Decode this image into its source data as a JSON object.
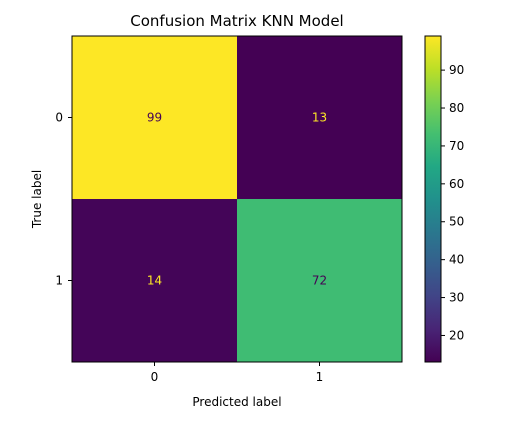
{
  "chart_data": {
    "type": "heatmap",
    "title": "Confusion Matrix KNN Model",
    "xlabel": "Predicted label",
    "ylabel": "True label",
    "x_categories": [
      "0",
      "1"
    ],
    "y_categories": [
      "0",
      "1"
    ],
    "values": [
      [
        99,
        13
      ],
      [
        14,
        72
      ]
    ],
    "colormap": "viridis",
    "colorbar": {
      "range": [
        13,
        99
      ],
      "ticks": [
        20,
        30,
        40,
        50,
        60,
        70,
        80,
        90
      ]
    },
    "colors": {
      "low": "#440154",
      "high": "#fde725",
      "label_on_dark": "#fde725",
      "label_on_light": "#440154"
    }
  }
}
